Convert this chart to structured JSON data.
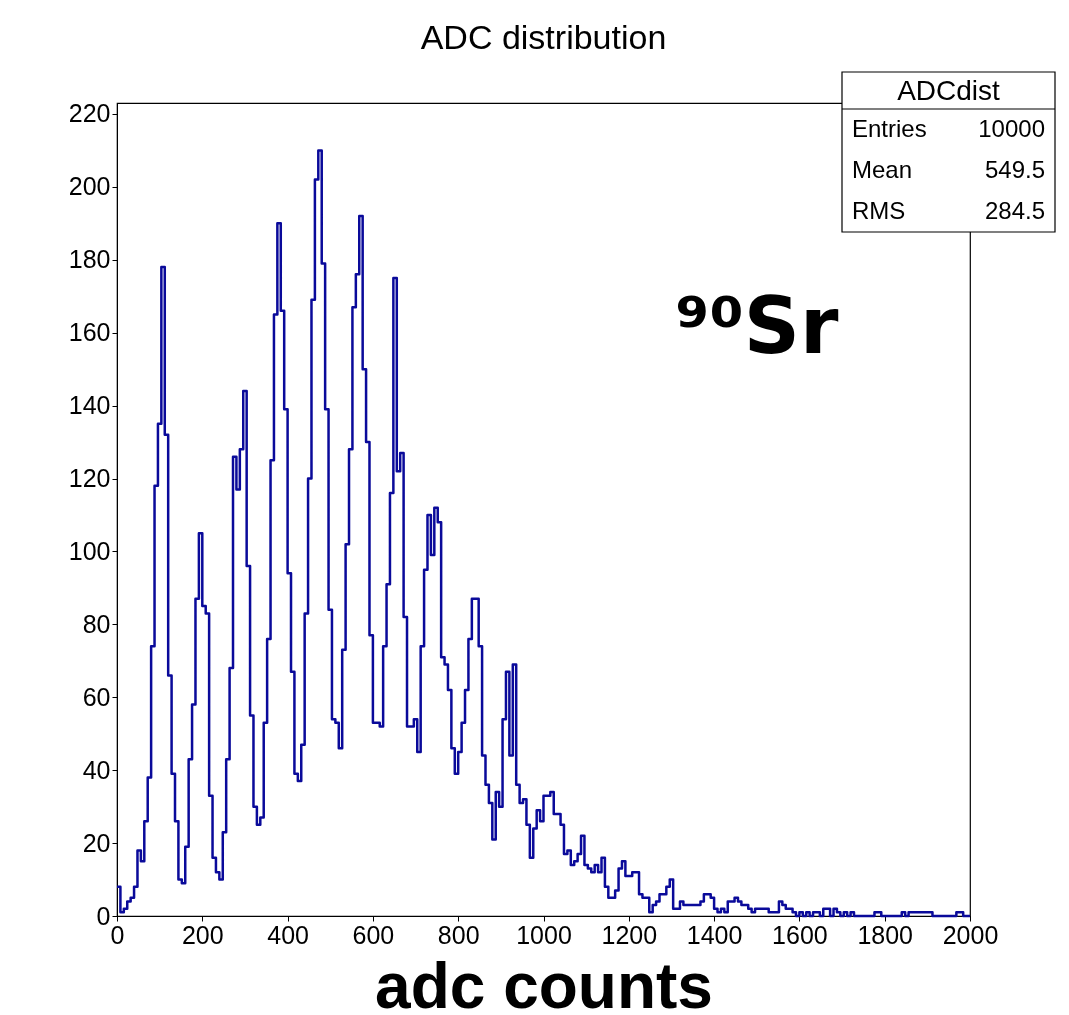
{
  "chart_data": {
    "type": "histogram",
    "title": "ADC distribution",
    "xlabel": "adc counts",
    "bins": [
      0,
      8,
      16,
      24,
      32,
      40,
      48,
      56,
      64,
      72,
      80,
      88,
      96,
      104,
      112,
      120,
      128,
      136,
      144,
      152,
      160,
      168,
      176,
      184,
      192,
      200,
      208,
      216,
      224,
      232,
      240,
      248,
      256,
      264,
      272,
      280,
      288,
      296,
      304,
      312,
      320,
      328,
      336,
      344,
      352,
      360,
      368,
      376,
      384,
      392,
      400,
      408,
      416,
      424,
      432,
      440,
      448,
      456,
      464,
      472,
      480,
      488,
      496,
      504,
      512,
      520,
      528,
      536,
      544,
      552,
      560,
      568,
      576,
      584,
      592,
      600,
      608,
      616,
      624,
      632,
      640,
      648,
      656,
      664,
      672,
      680,
      688,
      696,
      704,
      712,
      720,
      728,
      736,
      744,
      752,
      760,
      768,
      776,
      784,
      792,
      800,
      808,
      816,
      824,
      832,
      840,
      848,
      856,
      864,
      872,
      880,
      888,
      896,
      904,
      912,
      920,
      928,
      936,
      944,
      952,
      960,
      968,
      976,
      984,
      992,
      1000,
      1008,
      1016,
      1024,
      1032,
      1040,
      1048,
      1056,
      1064,
      1072,
      1080,
      1088,
      1096,
      1104,
      1112,
      1120,
      1128,
      1136,
      1144,
      1152,
      1160,
      1168,
      1176,
      1184,
      1192,
      1200,
      1208,
      1216,
      1224,
      1232,
      1240,
      1248,
      1256,
      1264,
      1272,
      1280,
      1288,
      1296,
      1304,
      1312,
      1320,
      1328,
      1336,
      1344,
      1352,
      1360,
      1368,
      1376,
      1384,
      1392,
      1400,
      1408,
      1416,
      1424,
      1432,
      1440,
      1448,
      1456,
      1464,
      1472,
      1480,
      1488,
      1496,
      1504,
      1512,
      1520,
      1528,
      1536,
      1544,
      1552,
      1560,
      1568,
      1576,
      1584,
      1592,
      1600,
      1608,
      1616,
      1624,
      1632,
      1640,
      1648,
      1656,
      1664,
      1672,
      1680,
      1688,
      1696,
      1704,
      1712,
      1720,
      1728,
      1736,
      1744,
      1752,
      1760,
      1768,
      1776,
      1784,
      1792,
      1800,
      1808,
      1816,
      1824,
      1832,
      1840,
      1848,
      1856,
      1864,
      1872,
      1880,
      1888,
      1896,
      1904,
      1912,
      1920,
      1928,
      1936,
      1944,
      1952,
      1960,
      1968,
      1976,
      1984,
      1992,
      2000
    ],
    "values": [
      8,
      1,
      2,
      4,
      5,
      8,
      18,
      15,
      26,
      38,
      74,
      118,
      135,
      178,
      132,
      66,
      39,
      26,
      10,
      9,
      19,
      43,
      58,
      87,
      105,
      85,
      83,
      33,
      16,
      12,
      10,
      23,
      43,
      68,
      126,
      117,
      128,
      144,
      96,
      55,
      30,
      25,
      27,
      53,
      76,
      125,
      165,
      190,
      166,
      139,
      94,
      67,
      39,
      37,
      47,
      83,
      120,
      169,
      202,
      210,
      179,
      139,
      84,
      54,
      53,
      46,
      73,
      102,
      128,
      167,
      176,
      192,
      150,
      130,
      77,
      53,
      53,
      52,
      74,
      91,
      116,
      175,
      122,
      127,
      82,
      52,
      52,
      54,
      45,
      74,
      95,
      110,
      99,
      112,
      108,
      71,
      69,
      62,
      46,
      39,
      45,
      53,
      62,
      76,
      87,
      87,
      74,
      44,
      36,
      31,
      21,
      34,
      30,
      54,
      67,
      44,
      69,
      36,
      31,
      32,
      25,
      16,
      24,
      29,
      26,
      33,
      33,
      34,
      28,
      28,
      25,
      17,
      18,
      14,
      15,
      17,
      22,
      14,
      13,
      12,
      14,
      12,
      16,
      8,
      5,
      5,
      7,
      13,
      15,
      11,
      11,
      12,
      12,
      6,
      5,
      5,
      1,
      3,
      4,
      6,
      6,
      8,
      10,
      2,
      2,
      4,
      3,
      3,
      3,
      3,
      3,
      4,
      6,
      6,
      5,
      2,
      1,
      2,
      1,
      4,
      4,
      5,
      4,
      3,
      3,
      2,
      1,
      2,
      2,
      2,
      2,
      1,
      1,
      1,
      4,
      3,
      2,
      2,
      1,
      0,
      1,
      0,
      1,
      0,
      1,
      1,
      0,
      2,
      2,
      0,
      2,
      1,
      0,
      1,
      0,
      1,
      0,
      0,
      0,
      0,
      0,
      0,
      1,
      1,
      0,
      0,
      0,
      0,
      0,
      0,
      1,
      0,
      1,
      1,
      1,
      1,
      1,
      1,
      1,
      0,
      0,
      0,
      0,
      0,
      0,
      0,
      1,
      1,
      0,
      0
    ],
    "color": "#0a0a9a",
    "xlim": [
      0,
      2000
    ],
    "ylim": [
      0,
      223
    ],
    "xticks": [
      0,
      200,
      400,
      600,
      800,
      1000,
      1200,
      1400,
      1600,
      1800,
      2000
    ],
    "yticks": [
      0,
      20,
      40,
      60,
      80,
      100,
      120,
      140,
      160,
      180,
      200,
      220
    ],
    "grid": false,
    "annotations": [
      "ADCdist",
      "Entries",
      "10000",
      "Mean",
      "549.5",
      "RMS",
      "284.5",
      "⁹⁰Sr"
    ]
  }
}
